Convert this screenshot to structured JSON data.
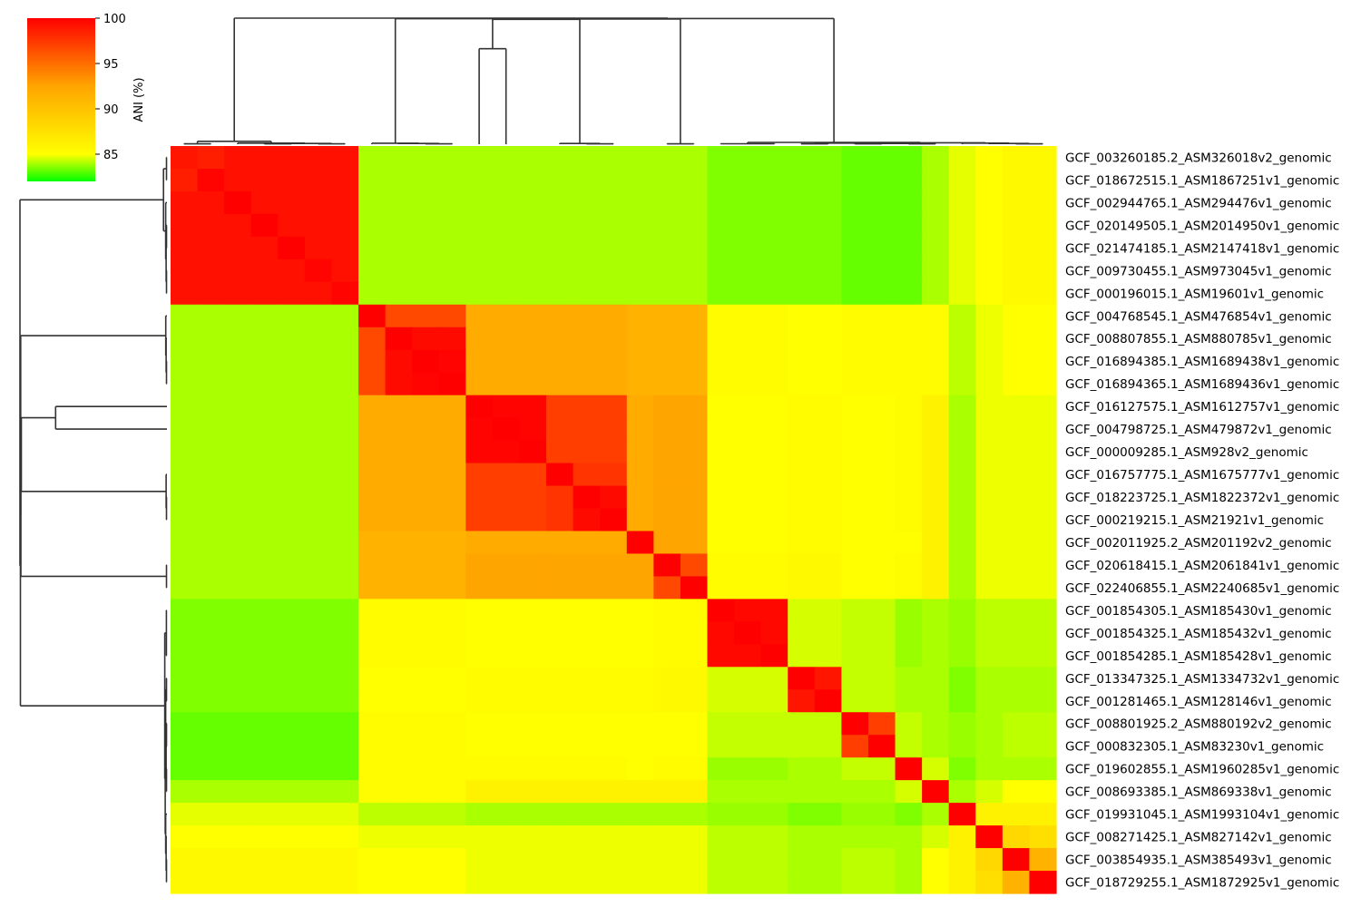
{
  "chart_data": {
    "type": "heatmap",
    "subtype": "clustermap",
    "colorbar": {
      "label": "ANI (%)",
      "ticks": [
        85,
        90,
        95,
        100
      ],
      "vmin": 82,
      "vmax": 100,
      "colors": [
        "#00ff00",
        "#ffff00",
        "#ffa500",
        "#ff0000"
      ]
    },
    "rows": [
      "GCF_003260185.2_ASM326018v2_genomic",
      "GCF_018672515.1_ASM1867251v1_genomic",
      "GCF_002944765.1_ASM294476v1_genomic",
      "GCF_020149505.1_ASM2014950v1_genomic",
      "GCF_021474185.1_ASM2147418v1_genomic",
      "GCF_009730455.1_ASM973045v1_genomic",
      "GCF_000196015.1_ASM19601v1_genomic",
      "GCF_004768545.1_ASM476854v1_genomic",
      "GCF_008807855.1_ASM880785v1_genomic",
      "GCF_016894385.1_ASM1689438v1_genomic",
      "GCF_016894365.1_ASM1689436v1_genomic",
      "GCF_016127575.1_ASM1612757v1_genomic",
      "GCF_004798725.1_ASM479872v1_genomic",
      "GCF_000009285.1_ASM928v2_genomic",
      "GCF_016757775.1_ASM1675777v1_genomic",
      "GCF_018223725.1_ASM1822372v1_genomic",
      "GCF_000219215.1_ASM21921v1_genomic",
      "GCF_002011925.2_ASM201192v2_genomic",
      "GCF_020618415.1_ASM2061841v1_genomic",
      "GCF_022406855.1_ASM2240685v1_genomic",
      "GCF_001854305.1_ASM185430v1_genomic",
      "GCF_001854325.1_ASM185432v1_genomic",
      "GCF_001854285.1_ASM185428v1_genomic",
      "GCF_013347325.1_ASM1334732v1_genomic",
      "GCF_001281465.1_ASM128146v1_genomic",
      "GCF_008801925.2_ASM880192v2_genomic",
      "GCF_000832305.1_ASM83230v1_genomic",
      "GCF_019602855.1_ASM1960285v1_genomic",
      "GCF_008693385.1_ASM869338v1_genomic",
      "GCF_019931045.1_ASM1993104v1_genomic",
      "GCF_008271425.1_ASM827142v1_genomic",
      "GCF_003854935.1_ASM385493v1_genomic",
      "GCF_018729255.1_ASM1872925v1_genomic"
    ],
    "groups": [
      {
        "start": 0,
        "end": 6,
        "within": 99.2
      },
      {
        "start": 7,
        "end": 10,
        "within": 97.5
      },
      {
        "start": 11,
        "end": 16,
        "within": 97.5
      },
      {
        "start": 17,
        "end": 17,
        "within": 100
      },
      {
        "start": 18,
        "end": 19,
        "within": 97.0
      },
      {
        "start": 20,
        "end": 22,
        "within": 99.6
      },
      {
        "start": 23,
        "end": 24,
        "within": 99.6
      },
      {
        "start": 25,
        "end": 26,
        "within": 97.5
      },
      {
        "start": 27,
        "end": 27,
        "within": 100
      },
      {
        "start": 28,
        "end": 28,
        "within": 100
      },
      {
        "start": 29,
        "end": 29,
        "within": 100
      },
      {
        "start": 30,
        "end": 30,
        "within": 100
      },
      {
        "start": 31,
        "end": 32,
        "within": 90.5
      }
    ],
    "group_ani": [
      [
        0,
        1,
        84.0
      ],
      [
        0,
        2,
        84.0
      ],
      [
        0,
        3,
        84.0
      ],
      [
        0,
        4,
        84.0
      ],
      [
        0,
        5,
        83.5
      ],
      [
        0,
        6,
        83.5
      ],
      [
        0,
        7,
        83.2
      ],
      [
        0,
        8,
        83.2
      ],
      [
        0,
        9,
        84.0
      ],
      [
        0,
        10,
        84.7
      ],
      [
        0,
        11,
        85.0
      ],
      [
        0,
        12,
        85.5
      ],
      [
        1,
        2,
        91.5
      ],
      [
        1,
        3,
        91.0
      ],
      [
        1,
        4,
        91.0
      ],
      [
        1,
        5,
        85.2
      ],
      [
        1,
        6,
        85.0
      ],
      [
        1,
        7,
        85.2
      ],
      [
        1,
        8,
        85.2
      ],
      [
        1,
        9,
        85.3
      ],
      [
        1,
        10,
        84.2
      ],
      [
        1,
        11,
        84.8
      ],
      [
        1,
        12,
        85.0
      ],
      [
        2,
        3,
        91.5
      ],
      [
        2,
        4,
        92.0
      ],
      [
        2,
        5,
        85.0
      ],
      [
        2,
        6,
        85.2
      ],
      [
        2,
        7,
        85.0
      ],
      [
        2,
        8,
        85.2
      ],
      [
        2,
        9,
        86.0
      ],
      [
        2,
        10,
        84.0
      ],
      [
        2,
        11,
        84.8
      ],
      [
        2,
        12,
        84.8
      ],
      [
        3,
        4,
        92.0
      ],
      [
        3,
        5,
        85.0
      ],
      [
        3,
        6,
        85.2
      ],
      [
        3,
        7,
        85.0
      ],
      [
        3,
        8,
        85.0
      ],
      [
        3,
        9,
        86.0
      ],
      [
        3,
        10,
        84.0
      ],
      [
        3,
        11,
        84.8
      ],
      [
        3,
        12,
        84.8
      ],
      [
        4,
        5,
        85.2
      ],
      [
        4,
        6,
        85.5
      ],
      [
        4,
        7,
        85.0
      ],
      [
        4,
        8,
        85.2
      ],
      [
        4,
        9,
        86.0
      ],
      [
        4,
        10,
        84.0
      ],
      [
        4,
        11,
        84.8
      ],
      [
        4,
        12,
        84.8
      ],
      [
        5,
        6,
        84.5
      ],
      [
        5,
        7,
        84.3
      ],
      [
        5,
        8,
        83.8
      ],
      [
        5,
        9,
        84.0
      ],
      [
        5,
        10,
        83.8
      ],
      [
        5,
        11,
        84.2
      ],
      [
        5,
        12,
        84.2
      ],
      [
        6,
        7,
        84.3
      ],
      [
        6,
        8,
        84.0
      ],
      [
        6,
        9,
        84.0
      ],
      [
        6,
        10,
        83.5
      ],
      [
        6,
        11,
        84.0
      ],
      [
        6,
        12,
        84.0
      ],
      [
        7,
        8,
        84.3
      ],
      [
        7,
        9,
        84.0
      ],
      [
        7,
        10,
        83.8
      ],
      [
        7,
        11,
        84.0
      ],
      [
        7,
        12,
        84.2
      ],
      [
        8,
        9,
        84.5
      ],
      [
        8,
        10,
        83.5
      ],
      [
        8,
        11,
        84.0
      ],
      [
        8,
        12,
        84.0
      ],
      [
        9,
        10,
        84.0
      ],
      [
        9,
        11,
        84.5
      ],
      [
        9,
        12,
        85.0
      ],
      [
        10,
        11,
        86.0
      ],
      [
        10,
        12,
        86.5
      ],
      [
        11,
        12,
        88.5
      ]
    ],
    "cell_overrides": [
      [
        0,
        0,
        99.0
      ],
      [
        1,
        1,
        99.8
      ],
      [
        0,
        1,
        98.5
      ],
      [
        5,
        5,
        99.8
      ],
      [
        6,
        6,
        99.8
      ],
      [
        2,
        2,
        100
      ],
      [
        3,
        3,
        100
      ],
      [
        4,
        4,
        100
      ],
      [
        7,
        7,
        100
      ],
      [
        8,
        8,
        100
      ],
      [
        9,
        9,
        100
      ],
      [
        10,
        10,
        100
      ],
      [
        7,
        8,
        96.5
      ],
      [
        7,
        9,
        96.5
      ],
      [
        7,
        10,
        96.5
      ],
      [
        8,
        9,
        99.5
      ],
      [
        8,
        10,
        99.5
      ],
      [
        9,
        10,
        99.8
      ],
      [
        11,
        12,
        99.8
      ],
      [
        11,
        13,
        99.8
      ],
      [
        12,
        13,
        99.8
      ],
      [
        14,
        14,
        100
      ],
      [
        15,
        15,
        100
      ],
      [
        16,
        16,
        100
      ],
      [
        15,
        16,
        99.5
      ],
      [
        11,
        14,
        97.0
      ],
      [
        12,
        14,
        97.0
      ],
      [
        13,
        14,
        97.0
      ],
      [
        11,
        15,
        97.0
      ],
      [
        12,
        15,
        97.0
      ],
      [
        13,
        15,
        97.0
      ],
      [
        11,
        16,
        97.0
      ],
      [
        12,
        16,
        97.0
      ],
      [
        13,
        16,
        97.0
      ],
      [
        14,
        15,
        97.5
      ],
      [
        14,
        16,
        97.5
      ],
      [
        18,
        18,
        100
      ],
      [
        19,
        19,
        100
      ],
      [
        18,
        19,
        96.5
      ],
      [
        25,
        25,
        100
      ],
      [
        26,
        26,
        100
      ],
      [
        25,
        26,
        97.0
      ],
      [
        31,
        31,
        100
      ],
      [
        32,
        32,
        100
      ],
      [
        31,
        32,
        91.0
      ],
      [
        29,
        30,
        86.0
      ],
      [
        30,
        31,
        88.0
      ],
      [
        30,
        32,
        87.5
      ],
      [
        29,
        31,
        86.0
      ],
      [
        29,
        32,
        86.0
      ],
      [
        23,
        24,
        99.0
      ],
      [
        20,
        20,
        100
      ]
    ]
  }
}
